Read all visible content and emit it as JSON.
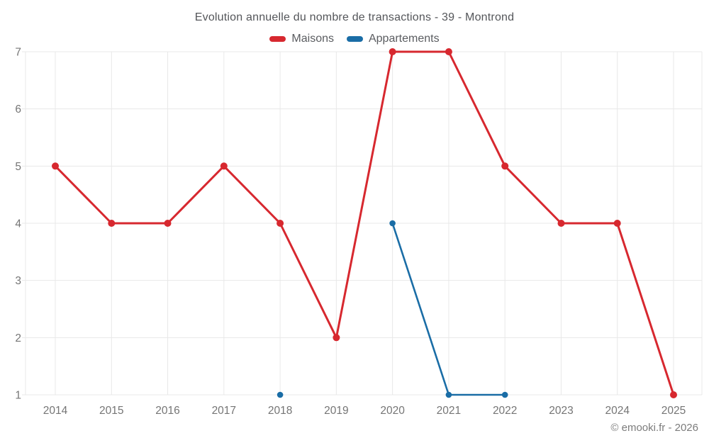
{
  "chart_data": {
    "type": "line",
    "title": "Evolution annuelle du nombre de transactions - 39 - Montrond",
    "categories": [
      "2014",
      "2015",
      "2016",
      "2017",
      "2018",
      "2019",
      "2020",
      "2021",
      "2022",
      "2023",
      "2024",
      "2025"
    ],
    "series": [
      {
        "name": "Maisons",
        "color": "#d7282f",
        "values": [
          5,
          4,
          4,
          5,
          4,
          2,
          7,
          7,
          5,
          4,
          4,
          1
        ]
      },
      {
        "name": "Appartements",
        "color": "#1a6da6",
        "values": [
          null,
          null,
          null,
          null,
          1,
          null,
          4,
          1,
          1,
          null,
          null,
          null
        ]
      }
    ],
    "ylim": [
      1,
      7
    ],
    "yticks": [
      1,
      2,
      3,
      4,
      5,
      6,
      7
    ],
    "xlabel": "",
    "ylabel": "",
    "grid": true,
    "legend_position": "top",
    "colors": {
      "gridline": "#e8e8e8",
      "axis_text": "#757575",
      "title_text": "#54565a",
      "footer_text": "#7c7c7c"
    }
  },
  "footer": {
    "copyright": "© emooki.fr - 2026"
  }
}
